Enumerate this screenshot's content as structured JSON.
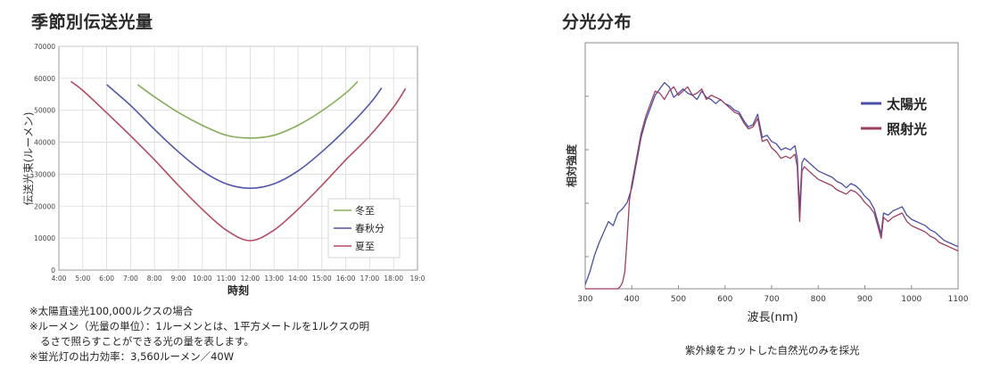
{
  "chart_data": [
    {
      "type": "line",
      "title": "季節別伝送光量",
      "xlabel": "時刻",
      "ylabel": "伝送光束(ルーメン)",
      "x_ticks": [
        "4:00",
        "5:00",
        "6:00",
        "7:00",
        "8:00",
        "9:00",
        "10:00",
        "11:00",
        "12:00",
        "13:00",
        "14:00",
        "15:00",
        "16:00",
        "17:00",
        "18:00",
        "19:0"
      ],
      "xlim": [
        4,
        19
      ],
      "ylim": [
        0,
        70000
      ],
      "y_ticks": [
        0,
        10000,
        20000,
        30000,
        40000,
        50000,
        60000,
        70000
      ],
      "y_tick_labels": [
        "0",
        "10000",
        "20000",
        "30000",
        "40000",
        "50000",
        "60000",
        "70000"
      ],
      "grid": true,
      "legend": "right-bottom",
      "series": [
        {
          "name": "冬至",
          "color": "#86ad5b",
          "x": [
            7.3,
            8,
            9,
            10,
            11,
            12,
            13,
            14,
            15,
            16,
            16.5
          ],
          "y": [
            58000,
            54200,
            49300,
            45300,
            42200,
            41300,
            42200,
            45300,
            49800,
            55400,
            59000
          ]
        },
        {
          "name": "春秋分",
          "color": "#5157a8",
          "x": [
            6.0,
            7,
            8,
            9,
            10,
            11,
            12,
            13,
            14,
            15,
            16,
            17,
            17.5
          ],
          "y": [
            58000,
            51500,
            44000,
            37000,
            31000,
            27000,
            25600,
            27000,
            31000,
            37000,
            44000,
            52000,
            57000
          ]
        },
        {
          "name": "夏至",
          "color": "#b34b63",
          "x": [
            4.5,
            5,
            6,
            7,
            8,
            9,
            10,
            11,
            12,
            13,
            14,
            15,
            16,
            17,
            18,
            18.5
          ],
          "y": [
            59000,
            56200,
            49200,
            42000,
            34500,
            26500,
            19000,
            12500,
            9200,
            12500,
            19000,
            26500,
            34500,
            42000,
            51000,
            56800
          ]
        }
      ]
    },
    {
      "type": "line",
      "title": "分光分布",
      "xlabel": "波長(nm)",
      "ylabel": "相対強度",
      "xlim": [
        300,
        1100
      ],
      "x_ticks": [
        300,
        400,
        500,
        600,
        700,
        800,
        900,
        1000,
        1100
      ],
      "ylim": [
        0,
        100
      ],
      "grid": false,
      "legend": "top-right",
      "series": [
        {
          "name": "太陽光",
          "color": "#4a4fa5",
          "x": [
            300,
            310,
            320,
            330,
            340,
            350,
            360,
            370,
            380,
            390,
            400,
            410,
            420,
            430,
            440,
            450,
            460,
            470,
            480,
            490,
            500,
            510,
            520,
            530,
            540,
            550,
            560,
            570,
            580,
            590,
            600,
            610,
            620,
            630,
            640,
            650,
            660,
            670,
            680,
            690,
            700,
            710,
            720,
            730,
            740,
            750,
            755,
            760,
            765,
            770,
            780,
            790,
            800,
            810,
            820,
            830,
            840,
            850,
            860,
            870,
            880,
            890,
            900,
            910,
            920,
            930,
            935,
            940,
            950,
            960,
            970,
            980,
            990,
            1000,
            1010,
            1020,
            1030,
            1040,
            1050,
            1060,
            1070,
            1080,
            1090,
            1100
          ],
          "y": [
            2,
            8,
            16,
            22,
            27,
            32,
            30,
            36,
            38,
            41,
            48,
            60,
            72,
            80,
            86,
            92,
            95,
            98,
            96,
            91,
            93,
            95,
            93,
            92,
            90,
            94,
            91,
            90,
            88,
            90,
            88,
            87,
            85,
            84,
            80,
            77,
            78,
            83,
            72,
            73,
            70,
            69,
            66,
            67,
            66,
            68,
            62,
            38,
            60,
            62,
            60,
            58,
            56,
            55,
            54,
            53,
            51,
            50,
            48,
            50,
            49,
            47,
            44,
            42,
            38,
            30,
            26,
            36,
            35,
            37,
            38,
            39,
            35,
            33,
            32,
            31,
            30,
            28,
            27,
            25,
            23,
            22,
            21,
            20
          ]
        },
        {
          "name": "照射光",
          "color": "#9c3f5f",
          "x": [
            300,
            320,
            340,
            360,
            370,
            375,
            380,
            385,
            390,
            395,
            400,
            410,
            420,
            430,
            440,
            450,
            460,
            470,
            480,
            490,
            500,
            510,
            520,
            530,
            540,
            550,
            560,
            570,
            580,
            590,
            600,
            610,
            620,
            630,
            640,
            650,
            660,
            670,
            680,
            690,
            700,
            710,
            720,
            730,
            740,
            750,
            755,
            760,
            765,
            770,
            780,
            790,
            800,
            810,
            820,
            830,
            840,
            850,
            860,
            870,
            880,
            890,
            900,
            910,
            920,
            930,
            935,
            940,
            950,
            960,
            970,
            980,
            990,
            1000,
            1010,
            1020,
            1030,
            1040,
            1050,
            1060,
            1070,
            1080,
            1090,
            1100
          ],
          "y": [
            0,
            0,
            0,
            0,
            0,
            1,
            3,
            8,
            24,
            42,
            50,
            62,
            74,
            82,
            88,
            94,
            93,
            90,
            94,
            96,
            92,
            94,
            96,
            92,
            93,
            95,
            90,
            92,
            91,
            90,
            88,
            86,
            84,
            83,
            79,
            76,
            77,
            81,
            70,
            71,
            67,
            65,
            62,
            63,
            62,
            64,
            58,
            32,
            56,
            58,
            56,
            54,
            52,
            51,
            50,
            49,
            47,
            46,
            45,
            47,
            46,
            44,
            41,
            39,
            36,
            28,
            24,
            34,
            32,
            34,
            35,
            36,
            32,
            30,
            29,
            28,
            27,
            25,
            24,
            22,
            21,
            20,
            19,
            18
          ]
        }
      ]
    }
  ],
  "notes": [
    "※太陽直達光100,000ルクスの場合",
    "※ルーメン（光量の単位）：1ルーメンとは、1平方メートルを1ルクスの明",
    "るさで照らすことができる光の量を表します。",
    "※蛍光灯の出力効率：3,560ルーメン／40W"
  ],
  "caption": "紫外線をカットした自然光のみを採光"
}
